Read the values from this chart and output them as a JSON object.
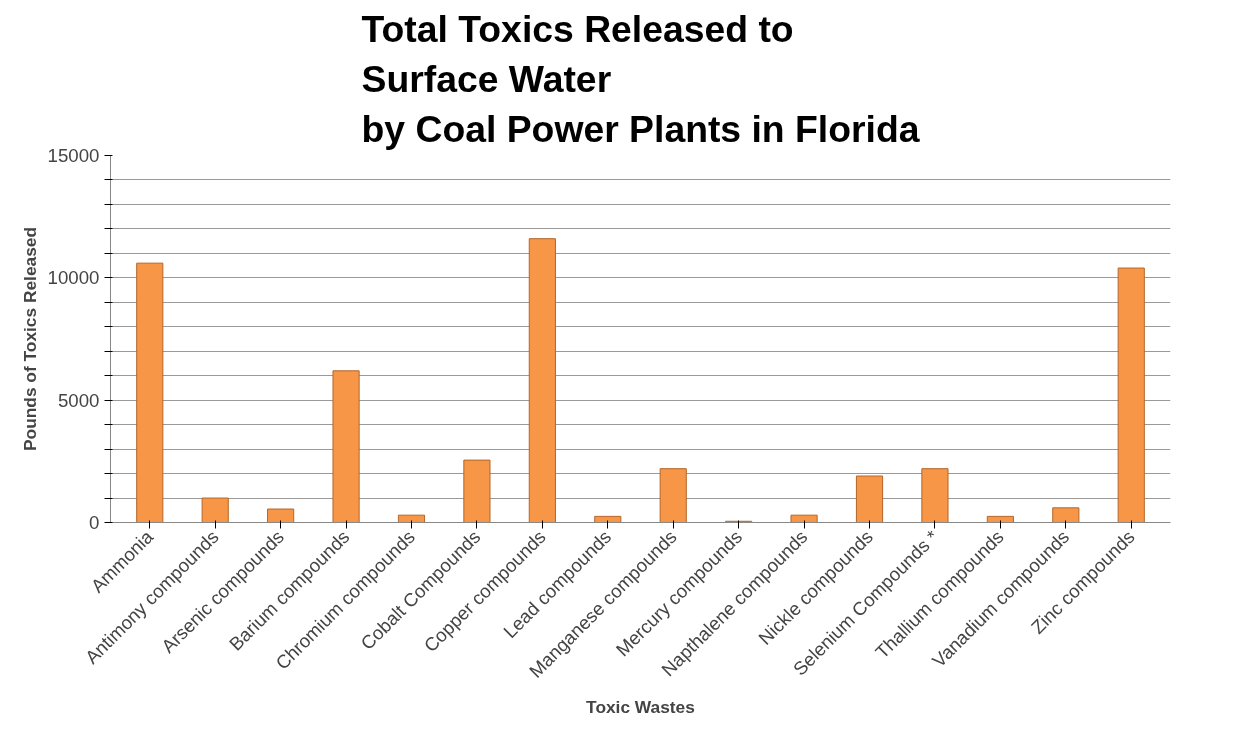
{
  "chart_data": {
    "type": "bar",
    "title": "Total Toxics Released to\nSurface Water\nby Coal Power Plants in Florida",
    "xlabel": "Toxic Wastes",
    "ylabel": "Pounds of Toxics Released",
    "categories": [
      "Ammonia",
      "Antimony compounds",
      "Arsenic compounds",
      "Barium compounds",
      "Chromium compounds",
      "Cobalt Compounds",
      "Copper compounds",
      "Lead compounds",
      "Manganese compounds",
      "Mercury compounds",
      "Napthalene compounds",
      "Nickle compounds",
      "Selenium Compounds *",
      "Thallium compounds",
      "Vanadium compounds",
      "Zinc compounds"
    ],
    "values": [
      10600,
      1000,
      550,
      6200,
      300,
      2550,
      11600,
      250,
      2200,
      50,
      300,
      1900,
      2200,
      250,
      600,
      10400
    ],
    "color": "#f79646",
    "ylim": [
      0,
      15000
    ],
    "yticks": [
      0,
      {
        "value": 1000,
        "label": null
      },
      {
        "value": 2000,
        "label": null
      },
      {
        "value": 3000,
        "label": null
      },
      {
        "value": 4000,
        "label": null
      },
      5000,
      {
        "value": 6000,
        "label": null
      },
      {
        "value": 7000,
        "label": null
      },
      {
        "value": 8000,
        "label": null
      },
      {
        "value": 9000,
        "label": null
      },
      10000,
      {
        "value": 11000,
        "label": null
      },
      {
        "value": 12000,
        "label": null
      },
      {
        "value": 13000,
        "label": null
      },
      {
        "value": 14000,
        "label": null
      },
      15000
    ],
    "grid": "y"
  }
}
